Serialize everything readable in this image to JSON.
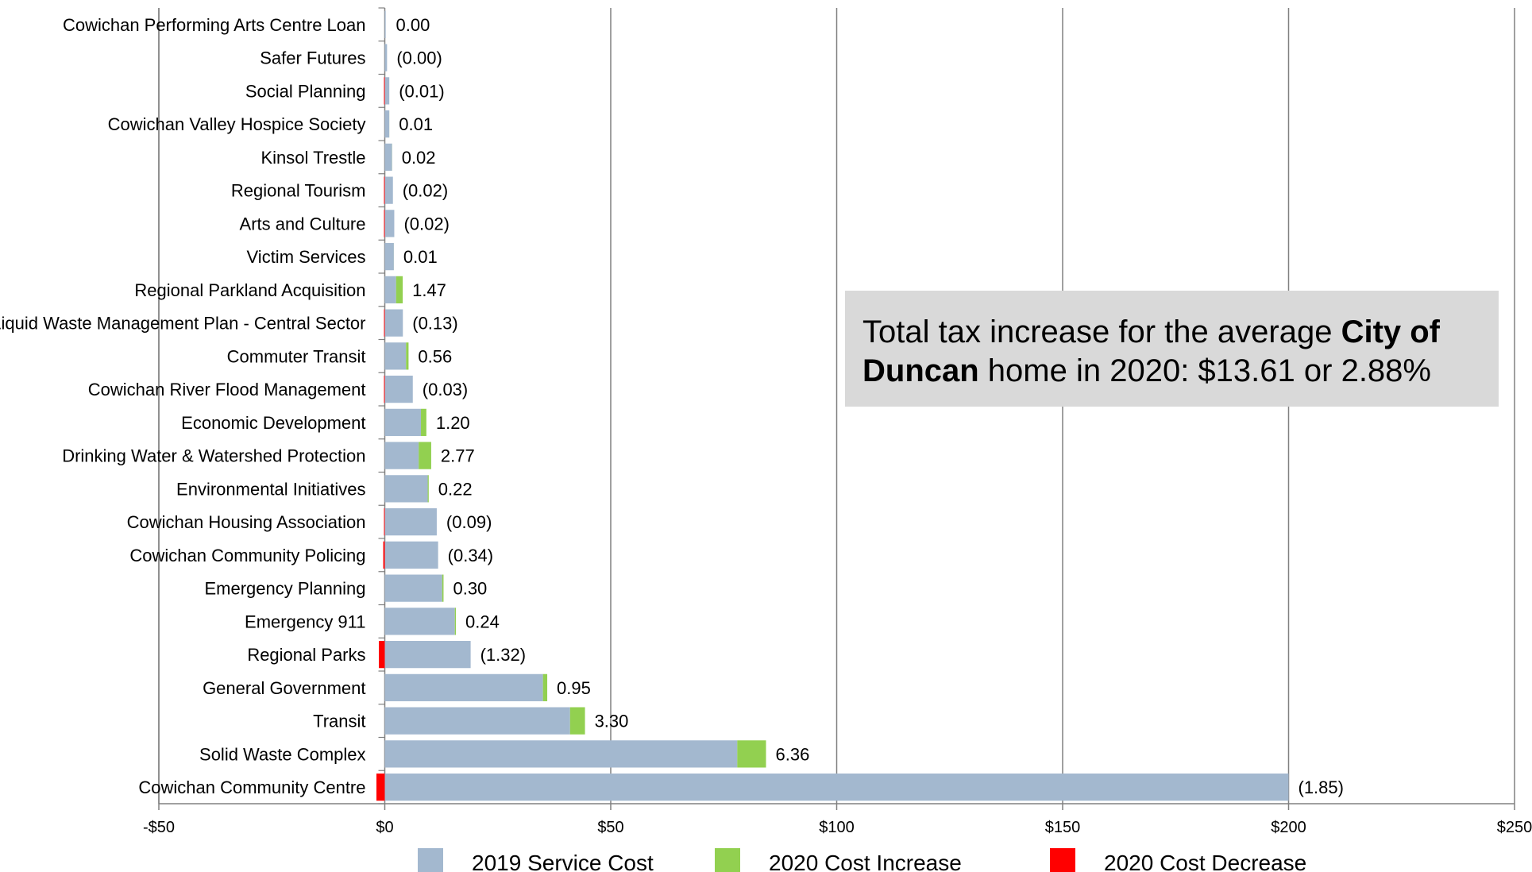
{
  "chart_data": {
    "type": "bar",
    "orientation": "horizontal",
    "stacked": true,
    "categories": [
      "Cowichan Performing Arts Centre Loan",
      "Safer Futures",
      "Social Planning",
      "Cowichan Valley Hospice Society",
      "Kinsol Trestle",
      "Regional Tourism",
      "Arts and Culture",
      "Victim Services",
      "Regional Parkland Acquisition",
      "Liquid Waste Management Plan - Central Sector",
      "Commuter Transit",
      "Cowichan River Flood Management",
      "Economic Development",
      "Drinking Water & Watershed Protection",
      "Environmental Initiatives",
      "Cowichan Housing Association",
      "Cowichan Community Policing",
      "Emergency Planning",
      "Emergency 911",
      "Regional Parks",
      "General Government",
      "Transit",
      "Solid Waste Complex",
      "Cowichan Community Centre"
    ],
    "series": [
      {
        "name": "2019 Service Cost",
        "color": "#a3b8cf",
        "values": [
          0.2,
          0.5,
          1.0,
          1.0,
          1.6,
          1.8,
          2.1,
          2.0,
          2.5,
          4.0,
          4.7,
          6.2,
          8.0,
          7.5,
          9.5,
          11.5,
          11.8,
          12.7,
          15.5,
          19.0,
          35.0,
          41.0,
          78.0,
          200.0
        ]
      },
      {
        "name": "2020 Cost Increase",
        "color": "#92d050",
        "values": [
          0.0,
          0,
          0,
          0.01,
          0.02,
          0,
          0,
          0.01,
          1.47,
          0,
          0.56,
          0,
          1.2,
          2.77,
          0.22,
          0,
          0,
          0.3,
          0.24,
          0,
          0.95,
          3.3,
          6.36,
          0
        ]
      },
      {
        "name": "2020 Cost Decrease",
        "color": "#ff0000",
        "values": [
          0,
          0.0,
          0.01,
          0,
          0,
          0.02,
          0.02,
          0,
          0,
          0.13,
          0,
          0.03,
          0,
          0,
          0,
          0.09,
          0.34,
          0,
          0,
          1.32,
          0,
          0,
          0,
          1.85
        ]
      }
    ],
    "data_labels": [
      "0.00",
      "(0.00)",
      "(0.01)",
      "0.01",
      "0.02",
      "(0.02)",
      "(0.02)",
      "0.01",
      "1.47",
      "(0.13)",
      "0.56",
      "(0.03)",
      "1.20",
      "2.77",
      "0.22",
      "(0.09)",
      "(0.34)",
      "0.30",
      "0.24",
      "(1.32)",
      "0.95",
      "3.30",
      "6.36",
      "(1.85)"
    ],
    "xlim": [
      -50,
      250
    ],
    "x_ticks": [
      -50,
      0,
      50,
      100,
      150,
      200,
      250
    ],
    "x_tick_labels": [
      "-$50",
      "$0",
      "$50",
      "$100",
      "$150",
      "$200",
      "$250"
    ],
    "grid": "vertical",
    "legend_position": "bottom"
  },
  "annotation": {
    "part1": "Total tax increase for the average ",
    "bold1": "City of",
    "bold2": "Duncan",
    "part2": " home in 2020: $13.61 or 2.88%"
  }
}
